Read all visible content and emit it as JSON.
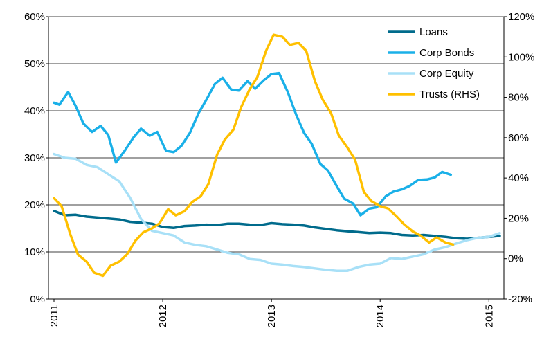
{
  "chart_data": {
    "type": "line",
    "title": "",
    "xlabel": "",
    "ylabel": "",
    "x_ticks": [
      "2011",
      "2012",
      "2013",
      "2014",
      "2015"
    ],
    "x_range": [
      2011.0,
      2015.1
    ],
    "y_left": {
      "ticks": [
        "0%",
        "10%",
        "20%",
        "30%",
        "40%",
        "50%",
        "60%"
      ],
      "range": [
        0,
        60
      ]
    },
    "y_right": {
      "ticks": [
        "-20%",
        "0%",
        "20%",
        "40%",
        "60%",
        "80%",
        "100%",
        "120%"
      ],
      "range": [
        -20,
        120
      ]
    },
    "grid": {
      "horizontal": true,
      "vertical": false
    },
    "legend_position": "top-right",
    "series": [
      {
        "name": "Loans",
        "axis": "left",
        "color": "#006b8c",
        "points": [
          [
            2011.0,
            18.7
          ],
          [
            2011.1,
            17.8
          ],
          [
            2011.2,
            17.9
          ],
          [
            2011.3,
            17.5
          ],
          [
            2011.4,
            17.3
          ],
          [
            2011.5,
            17.1
          ],
          [
            2011.6,
            16.9
          ],
          [
            2011.7,
            16.4
          ],
          [
            2011.8,
            16.2
          ],
          [
            2011.9,
            16.0
          ],
          [
            2012.0,
            15.3
          ],
          [
            2012.1,
            15.1
          ],
          [
            2012.2,
            15.5
          ],
          [
            2012.3,
            15.6
          ],
          [
            2012.4,
            15.8
          ],
          [
            2012.5,
            15.7
          ],
          [
            2012.6,
            16.0
          ],
          [
            2012.7,
            16.0
          ],
          [
            2012.8,
            15.8
          ],
          [
            2012.9,
            15.7
          ],
          [
            2013.0,
            16.1
          ],
          [
            2013.1,
            15.9
          ],
          [
            2013.2,
            15.8
          ],
          [
            2013.3,
            15.6
          ],
          [
            2013.4,
            15.2
          ],
          [
            2013.5,
            14.9
          ],
          [
            2013.6,
            14.6
          ],
          [
            2013.7,
            14.4
          ],
          [
            2013.8,
            14.2
          ],
          [
            2013.9,
            14.0
          ],
          [
            2014.0,
            14.1
          ],
          [
            2014.1,
            14.0
          ],
          [
            2014.2,
            13.6
          ],
          [
            2014.3,
            13.5
          ],
          [
            2014.4,
            13.6
          ],
          [
            2014.5,
            13.4
          ],
          [
            2014.6,
            13.2
          ],
          [
            2014.7,
            12.9
          ],
          [
            2014.8,
            12.8
          ],
          [
            2014.9,
            13.0
          ],
          [
            2015.0,
            13.2
          ],
          [
            2015.1,
            13.4
          ]
        ]
      },
      {
        "name": "Corp Bonds",
        "axis": "left",
        "color": "#1ab0e8",
        "points": [
          [
            2011.0,
            41.7
          ],
          [
            2011.05,
            41.3
          ],
          [
            2011.13,
            44.0
          ],
          [
            2011.2,
            41.0
          ],
          [
            2011.27,
            37.3
          ],
          [
            2011.35,
            35.5
          ],
          [
            2011.43,
            36.8
          ],
          [
            2011.5,
            34.8
          ],
          [
            2011.57,
            29.0
          ],
          [
            2011.65,
            31.5
          ],
          [
            2011.73,
            34.3
          ],
          [
            2011.8,
            36.2
          ],
          [
            2011.88,
            34.7
          ],
          [
            2011.95,
            35.5
          ],
          [
            2012.03,
            31.5
          ],
          [
            2012.1,
            31.2
          ],
          [
            2012.17,
            32.5
          ],
          [
            2012.25,
            35.3
          ],
          [
            2012.33,
            39.5
          ],
          [
            2012.4,
            42.3
          ],
          [
            2012.48,
            45.7
          ],
          [
            2012.55,
            47.0
          ],
          [
            2012.63,
            44.5
          ],
          [
            2012.7,
            44.3
          ],
          [
            2012.78,
            46.3
          ],
          [
            2012.85,
            44.7
          ],
          [
            2012.93,
            46.5
          ],
          [
            2013.0,
            47.8
          ],
          [
            2013.07,
            48.0
          ],
          [
            2013.15,
            44.0
          ],
          [
            2013.23,
            39.0
          ],
          [
            2013.3,
            35.3
          ],
          [
            2013.37,
            33.0
          ],
          [
            2013.45,
            28.7
          ],
          [
            2013.52,
            27.3
          ],
          [
            2013.6,
            24.0
          ],
          [
            2013.67,
            21.3
          ],
          [
            2013.75,
            20.3
          ],
          [
            2013.82,
            17.8
          ],
          [
            2013.9,
            19.2
          ],
          [
            2013.97,
            19.5
          ],
          [
            2014.05,
            21.8
          ],
          [
            2014.12,
            22.8
          ],
          [
            2014.2,
            23.3
          ],
          [
            2014.27,
            24.0
          ],
          [
            2014.35,
            25.3
          ],
          [
            2014.43,
            25.4
          ],
          [
            2014.5,
            25.8
          ],
          [
            2014.57,
            27.0
          ],
          [
            2014.65,
            26.4
          ]
        ]
      },
      {
        "name": "Corp Equity",
        "axis": "left",
        "color": "#a8e0f7",
        "points": [
          [
            2011.0,
            30.8
          ],
          [
            2011.1,
            30.0
          ],
          [
            2011.2,
            29.8
          ],
          [
            2011.3,
            28.5
          ],
          [
            2011.4,
            28.0
          ],
          [
            2011.5,
            26.5
          ],
          [
            2011.6,
            25.0
          ],
          [
            2011.7,
            21.5
          ],
          [
            2011.8,
            17.0
          ],
          [
            2011.9,
            14.5
          ],
          [
            2012.0,
            14.0
          ],
          [
            2012.1,
            13.5
          ],
          [
            2012.2,
            12.0
          ],
          [
            2012.3,
            11.5
          ],
          [
            2012.4,
            11.2
          ],
          [
            2012.5,
            10.5
          ],
          [
            2012.6,
            9.8
          ],
          [
            2012.7,
            9.5
          ],
          [
            2012.8,
            8.5
          ],
          [
            2012.9,
            8.3
          ],
          [
            2013.0,
            7.5
          ],
          [
            2013.1,
            7.3
          ],
          [
            2013.2,
            7.0
          ],
          [
            2013.3,
            6.8
          ],
          [
            2013.4,
            6.5
          ],
          [
            2013.5,
            6.2
          ],
          [
            2013.6,
            6.0
          ],
          [
            2013.7,
            6.0
          ],
          [
            2013.8,
            6.8
          ],
          [
            2013.9,
            7.3
          ],
          [
            2014.0,
            7.5
          ],
          [
            2014.1,
            8.7
          ],
          [
            2014.2,
            8.5
          ],
          [
            2014.3,
            9.0
          ],
          [
            2014.4,
            9.5
          ],
          [
            2014.5,
            10.5
          ],
          [
            2014.6,
            11.0
          ],
          [
            2014.7,
            11.8
          ],
          [
            2014.8,
            12.5
          ],
          [
            2014.9,
            13.0
          ],
          [
            2015.0,
            13.2
          ],
          [
            2015.1,
            14.0
          ]
        ]
      },
      {
        "name": "Trusts (RHS)",
        "axis": "right",
        "color": "#ffc000",
        "points": [
          [
            2011.0,
            30.0
          ],
          [
            2011.07,
            26.0
          ],
          [
            2011.15,
            12.0
          ],
          [
            2011.22,
            2.0
          ],
          [
            2011.3,
            -1.5
          ],
          [
            2011.37,
            -7.0
          ],
          [
            2011.45,
            -8.5
          ],
          [
            2011.52,
            -3.5
          ],
          [
            2011.6,
            -1.5
          ],
          [
            2011.67,
            2.0
          ],
          [
            2011.75,
            9.0
          ],
          [
            2011.82,
            13.0
          ],
          [
            2011.9,
            15.0
          ],
          [
            2011.97,
            17.5
          ],
          [
            2012.05,
            24.5
          ],
          [
            2012.12,
            21.5
          ],
          [
            2012.2,
            23.5
          ],
          [
            2012.27,
            28.0
          ],
          [
            2012.35,
            31.0
          ],
          [
            2012.42,
            37.0
          ],
          [
            2012.5,
            51.5
          ],
          [
            2012.57,
            59.0
          ],
          [
            2012.65,
            64.0
          ],
          [
            2012.72,
            75.0
          ],
          [
            2012.8,
            84.0
          ],
          [
            2012.87,
            90.0
          ],
          [
            2012.95,
            103.0
          ],
          [
            2013.02,
            111.0
          ],
          [
            2013.1,
            110.0
          ],
          [
            2013.17,
            106.0
          ],
          [
            2013.25,
            107.0
          ],
          [
            2013.32,
            103.0
          ],
          [
            2013.4,
            88.0
          ],
          [
            2013.47,
            79.0
          ],
          [
            2013.55,
            72.0
          ],
          [
            2013.62,
            61.0
          ],
          [
            2013.7,
            55.0
          ],
          [
            2013.77,
            49.0
          ],
          [
            2013.85,
            33.0
          ],
          [
            2013.92,
            28.5
          ],
          [
            2014.0,
            26.0
          ],
          [
            2014.07,
            25.0
          ],
          [
            2014.15,
            21.0
          ],
          [
            2014.22,
            17.0
          ],
          [
            2014.3,
            13.5
          ],
          [
            2014.37,
            11.5
          ],
          [
            2014.45,
            8.0
          ],
          [
            2014.52,
            10.5
          ],
          [
            2014.6,
            8.0
          ],
          [
            2014.67,
            7.0
          ]
        ]
      }
    ]
  }
}
